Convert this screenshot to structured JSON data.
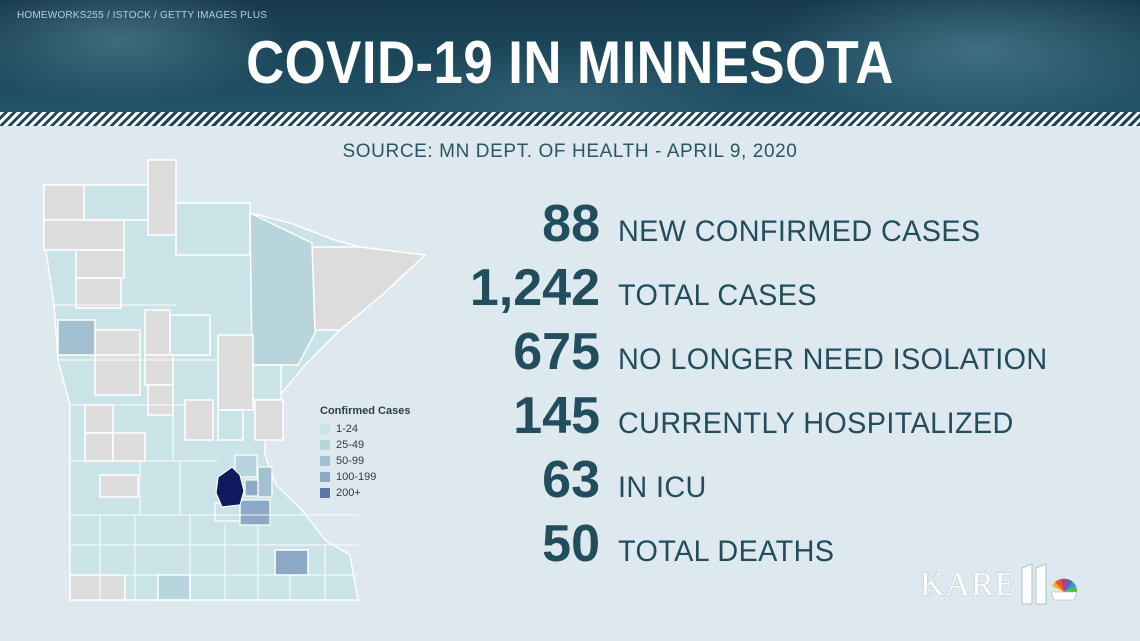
{
  "banner": {
    "credit": "HOMEWORKS255 / ISTOCK / GETTY IMAGES PLUS",
    "title": "COVID-19 IN MINNESOTA"
  },
  "source": "SOURCE: MN DEPT. OF HEALTH - APRIL 9, 2020",
  "legend": {
    "title": "Confirmed Cases",
    "items": [
      {
        "label": "1-24",
        "color": "#c9e3e6"
      },
      {
        "label": "25-49",
        "color": "#b8d4dc"
      },
      {
        "label": "50-99",
        "color": "#a3c0d0"
      },
      {
        "label": "100-199",
        "color": "#8da9c6"
      },
      {
        "label": "200+",
        "color": "#5e76a4"
      }
    ],
    "no_data_color": "#dcdcdc",
    "highlight_color": "#0f1a5e"
  },
  "stats": [
    {
      "value": "88",
      "label": "NEW CONFIRMED CASES"
    },
    {
      "value": "1,242",
      "label": "TOTAL CASES"
    },
    {
      "value": "675",
      "label": "NO LONGER NEED ISOLATION"
    },
    {
      "value": "145",
      "label": "CURRENTLY HOSPITALIZED"
    },
    {
      "value": "63",
      "label": "IN ICU"
    },
    {
      "value": "50",
      "label": "TOTAL DEATHS"
    }
  ],
  "logo": {
    "text": "KARE",
    "icon": "eleven-peacock-icon"
  }
}
